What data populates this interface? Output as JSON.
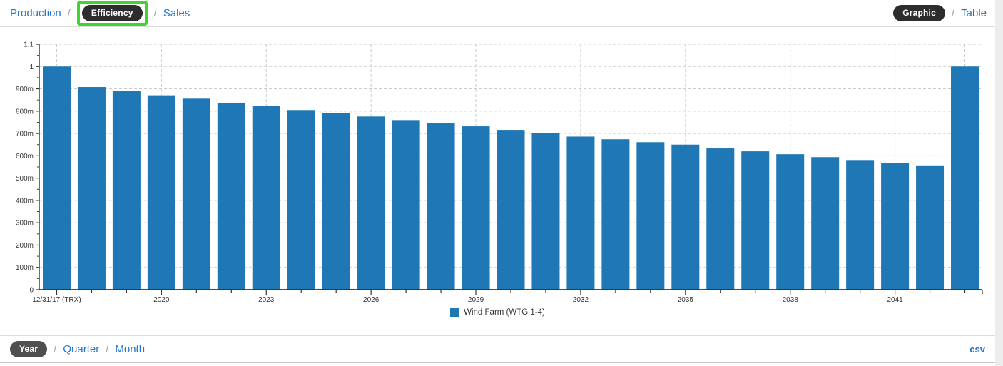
{
  "nav": {
    "separator": "/",
    "items": [
      {
        "label": "Production",
        "selected": false
      },
      {
        "label": "Efficiency",
        "selected": true,
        "click_highlight": true
      },
      {
        "label": "Sales",
        "selected": false
      }
    ],
    "view_toggle": [
      {
        "label": "Graphic",
        "selected": true
      },
      {
        "label": "Table",
        "selected": false
      }
    ]
  },
  "chart_data": {
    "type": "bar",
    "title": "",
    "xlabel": "",
    "ylabel": "",
    "ylim": [
      0,
      1.1
    ],
    "grid": "dashed",
    "legend_position": "bottom",
    "n_bars": 27,
    "series": [
      {
        "name": "Wind Farm (WTG 1-4)",
        "color": "#2077b5",
        "values": [
          1.0,
          0.908,
          0.89,
          0.871,
          0.856,
          0.838,
          0.824,
          0.805,
          0.792,
          0.776,
          0.76,
          0.745,
          0.732,
          0.716,
          0.702,
          0.686,
          0.674,
          0.661,
          0.65,
          0.633,
          0.62,
          0.607,
          0.594,
          0.581,
          0.568,
          0.557,
          1.0
        ]
      }
    ],
    "x_tick_labels": [
      {
        "index": 0,
        "label": "12/31/17 (TRX)"
      },
      {
        "index": 3,
        "label": "2020"
      },
      {
        "index": 6,
        "label": "2023"
      },
      {
        "index": 9,
        "label": "2026"
      },
      {
        "index": 12,
        "label": "2029"
      },
      {
        "index": 15,
        "label": "2032"
      },
      {
        "index": 18,
        "label": "2035"
      },
      {
        "index": 21,
        "label": "2038"
      },
      {
        "index": 24,
        "label": "2041"
      }
    ],
    "y_tick_labels": [
      {
        "value": 0.0,
        "label": "0"
      },
      {
        "value": 0.1,
        "label": "100m"
      },
      {
        "value": 0.2,
        "label": "200m"
      },
      {
        "value": 0.3,
        "label": "300m"
      },
      {
        "value": 0.4,
        "label": "400m"
      },
      {
        "value": 0.5,
        "label": "500m"
      },
      {
        "value": 0.6,
        "label": "600m"
      },
      {
        "value": 0.7,
        "label": "700m"
      },
      {
        "value": 0.8,
        "label": "800m"
      },
      {
        "value": 0.9,
        "label": "900m"
      },
      {
        "value": 1.0,
        "label": "1"
      },
      {
        "value": 1.1,
        "label": "1.1"
      }
    ],
    "vertical_gridline_indices": [
      0,
      3,
      6,
      9,
      12,
      15,
      18,
      21,
      24,
      26
    ]
  },
  "footer": {
    "separator": "/",
    "interval_options": [
      {
        "label": "Year",
        "selected": true
      },
      {
        "label": "Quarter",
        "selected": false
      },
      {
        "label": "Month",
        "selected": false
      }
    ],
    "export_label": "csv"
  },
  "colors": {
    "link": "#2277cc",
    "pill_dark": "#2d2d2d",
    "pill_gray": "#4f4f4f",
    "click_highlight_green": "#3ed52e",
    "bar": "#2077b5",
    "grid": "#cccccc",
    "axis": "#333333"
  }
}
